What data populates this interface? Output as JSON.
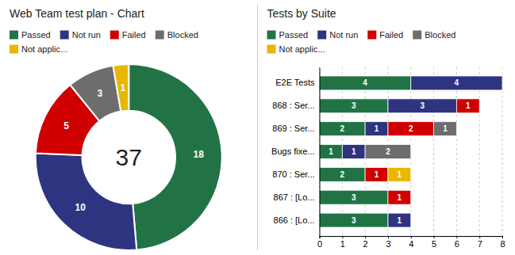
{
  "chart_data": [
    {
      "type": "pie",
      "title": "Web Team test plan - Chart",
      "categories": [
        "Passed",
        "Not run",
        "Failed",
        "Blocked",
        "Not applic..."
      ],
      "values": [
        18,
        10,
        5,
        3,
        1
      ],
      "colors": [
        "#217346",
        "#2E3480",
        "#D00000",
        "#6D6D6D",
        "#E8B800"
      ],
      "annotations": [
        "37"
      ],
      "data_labels": true,
      "legend": "top"
    },
    {
      "type": "bar",
      "title": "Tests by Suite",
      "orientation": "horizontal",
      "stacked": true,
      "categories": [
        "E2E Tests",
        "868 : Ser...",
        "869 : Ser...",
        "Bugs fixe...",
        "870 : Ser...",
        "867 : [Lo...",
        "866 : [Lo..."
      ],
      "series": [
        {
          "name": "Passed",
          "color": "#217346",
          "values": [
            4,
            3,
            2,
            1,
            2,
            3,
            3
          ]
        },
        {
          "name": "Not run",
          "color": "#2E3480",
          "values": [
            4,
            3,
            1,
            1,
            0,
            0,
            1
          ]
        },
        {
          "name": "Failed",
          "color": "#D00000",
          "values": [
            0,
            1,
            2,
            0,
            1,
            1,
            0
          ]
        },
        {
          "name": "Blocked",
          "color": "#6D6D6D",
          "values": [
            0,
            0,
            1,
            2,
            0,
            0,
            0
          ]
        },
        {
          "name": "Not applic...",
          "color": "#E8B800",
          "values": [
            0,
            0,
            0,
            0,
            1,
            0,
            0
          ]
        }
      ],
      "xlim": [
        0,
        8
      ],
      "xticks": [
        0,
        1,
        2,
        3,
        4,
        5,
        6,
        7,
        8
      ],
      "grid": true,
      "data_labels": true,
      "legend": "top"
    }
  ]
}
